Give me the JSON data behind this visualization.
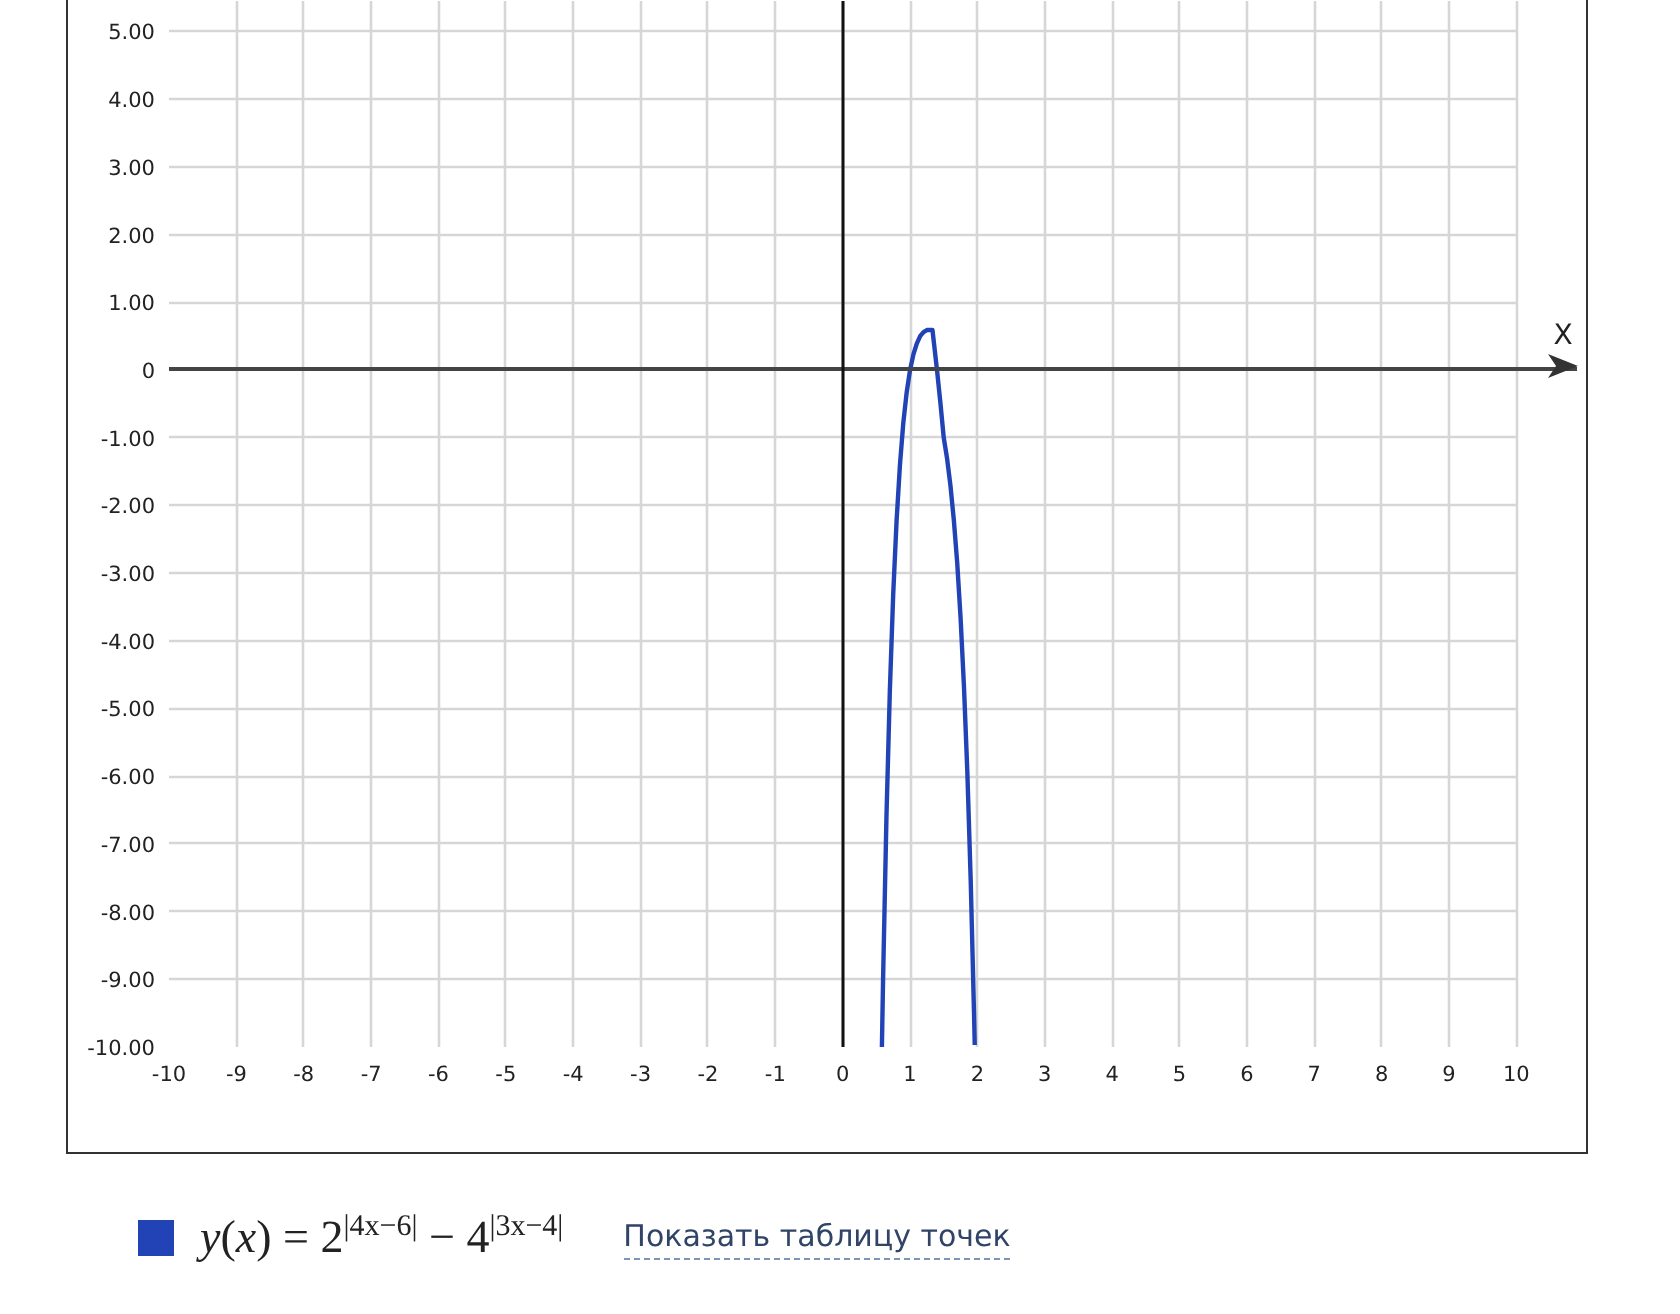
{
  "chart_data": {
    "type": "line",
    "xlabel": "X",
    "xlim": [
      -10,
      10.9
    ],
    "ylim": [
      -10,
      5.45
    ],
    "xticks": [
      -10,
      -9,
      -8,
      -7,
      -6,
      -5,
      -4,
      -3,
      -2,
      -1,
      0,
      1,
      2,
      3,
      4,
      5,
      6,
      7,
      8,
      9,
      10
    ],
    "yticks": [
      {
        "value": -10,
        "label": "-10.00"
      },
      {
        "value": -9,
        "label": "-9.00"
      },
      {
        "value": -8,
        "label": "-8.00"
      },
      {
        "value": -7,
        "label": "-7.00"
      },
      {
        "value": -6,
        "label": "-6.00"
      },
      {
        "value": -5,
        "label": "-5.00"
      },
      {
        "value": -4,
        "label": "-4.00"
      },
      {
        "value": -3,
        "label": "-3.00"
      },
      {
        "value": -2,
        "label": "-2.00"
      },
      {
        "value": -1,
        "label": "-1.00"
      },
      0,
      {
        "value": 1,
        "label": "1.00"
      },
      {
        "value": 2,
        "label": "2.00"
      },
      {
        "value": 3,
        "label": "3.00"
      },
      {
        "value": 4,
        "label": "4.00"
      },
      {
        "value": 5,
        "label": "5.00"
      }
    ],
    "grid": true,
    "legend": "bottom left",
    "series": [
      {
        "name": "y(x) = 2$^{|4x−6|}$ − 4$^{|3x−4|}$",
        "color": "#2243b5",
        "x": [
          0.582,
          0.6,
          0.65,
          0.7,
          0.75,
          0.8,
          0.85,
          0.9,
          0.95,
          1.0,
          1.05,
          1.1,
          1.15,
          1.2,
          1.25,
          1.3,
          1.333,
          1.35,
          1.4,
          1.45,
          1.5,
          1.55,
          1.6,
          1.65,
          1.7,
          1.75,
          1.8,
          1.85,
          1.9,
          1.95,
          1.96
        ],
        "values": [
          -10.0,
          -8.98,
          -6.59,
          -4.74,
          -3.31,
          -2.23,
          -1.4,
          -0.78,
          -0.33,
          0,
          0.23,
          0.39,
          0.5,
          0.56,
          0.59,
          0.59,
          0.59,
          0.44,
          0,
          -0.48,
          -1,
          -1.31,
          -1.71,
          -2.22,
          -2.85,
          -3.66,
          -4.67,
          -5.93,
          -7.53,
          -9.52,
          -9.97
        ]
      }
    ],
    "annotations": [
      "Показать таблицу точек"
    ]
  }
}
